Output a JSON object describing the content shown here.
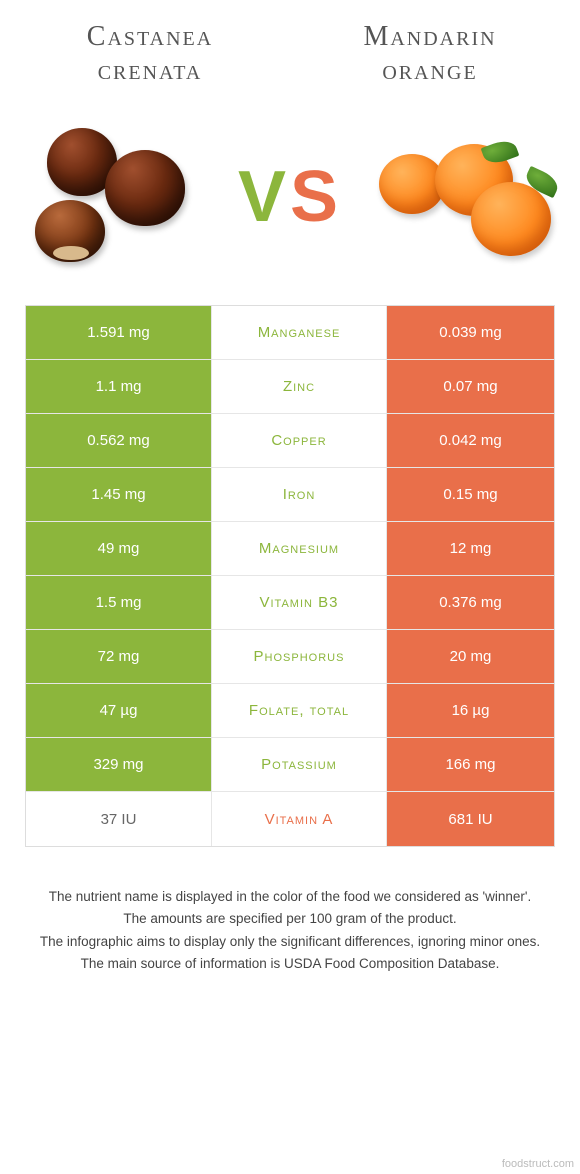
{
  "colors": {
    "left": "#8cb63c",
    "right": "#e96f4a",
    "mid_left_text": "#8cb63c",
    "mid_right_text": "#e96f4a",
    "white": "#ffffff"
  },
  "titles": {
    "left_line1": "Castanea",
    "left_line2": "crenata",
    "right_line1": "Mandarin",
    "right_line2": "orange"
  },
  "vs": {
    "v": "V",
    "s": "S"
  },
  "rows": [
    {
      "left": "1.591 mg",
      "name": "Manganese",
      "right": "0.039 mg",
      "winner": "left"
    },
    {
      "left": "1.1 mg",
      "name": "Zinc",
      "right": "0.07 mg",
      "winner": "left"
    },
    {
      "left": "0.562 mg",
      "name": "Copper",
      "right": "0.042 mg",
      "winner": "left"
    },
    {
      "left": "1.45 mg",
      "name": "Iron",
      "right": "0.15 mg",
      "winner": "left"
    },
    {
      "left": "49 mg",
      "name": "Magnesium",
      "right": "12 mg",
      "winner": "left"
    },
    {
      "left": "1.5 mg",
      "name": "Vitamin B3",
      "right": "0.376 mg",
      "winner": "left"
    },
    {
      "left": "72 mg",
      "name": "Phosphorus",
      "right": "20 mg",
      "winner": "left"
    },
    {
      "left": "47 µg",
      "name": "Folate, total",
      "right": "16 µg",
      "winner": "left"
    },
    {
      "left": "329 mg",
      "name": "Potassium",
      "right": "166 mg",
      "winner": "left"
    },
    {
      "left": "37 IU",
      "name": "Vitamin A",
      "right": "681 IU",
      "winner": "right"
    }
  ],
  "footer": {
    "p1": "The nutrient name is displayed in the color of the food we considered as 'winner'.",
    "p2": "The amounts are specified per 100 gram of the product.",
    "p3": "The infographic aims to display only the significant differences, ignoring minor ones.",
    "p4": "The main source of information is USDA Food Composition Database."
  },
  "source_watermark": "foodstruct.com"
}
